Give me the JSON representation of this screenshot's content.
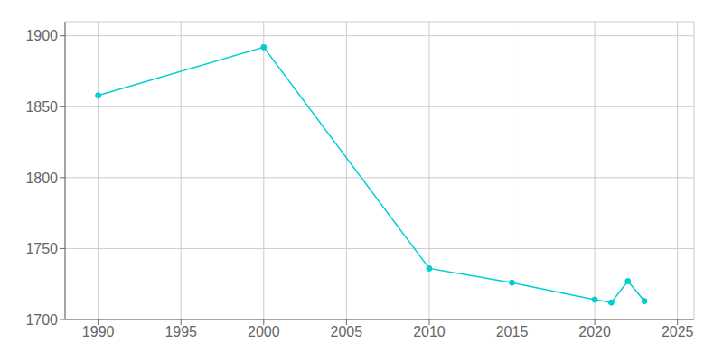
{
  "chart_data": {
    "type": "line",
    "x": [
      1990,
      2000,
      2010,
      2015,
      2020,
      2021,
      2022,
      2023
    ],
    "values": [
      1858,
      1892,
      1736,
      1726,
      1714,
      1712,
      1727,
      1713
    ],
    "color": "#00CED1",
    "marker": "circle",
    "xlim": [
      1988,
      2026
    ],
    "xticks": [
      1990,
      1995,
      2000,
      2005,
      2010,
      2015,
      2020,
      2025
    ],
    "ylim": [
      1700,
      1910
    ],
    "yticks": [
      1700,
      1750,
      1800,
      1850,
      1900
    ],
    "grid": true
  }
}
